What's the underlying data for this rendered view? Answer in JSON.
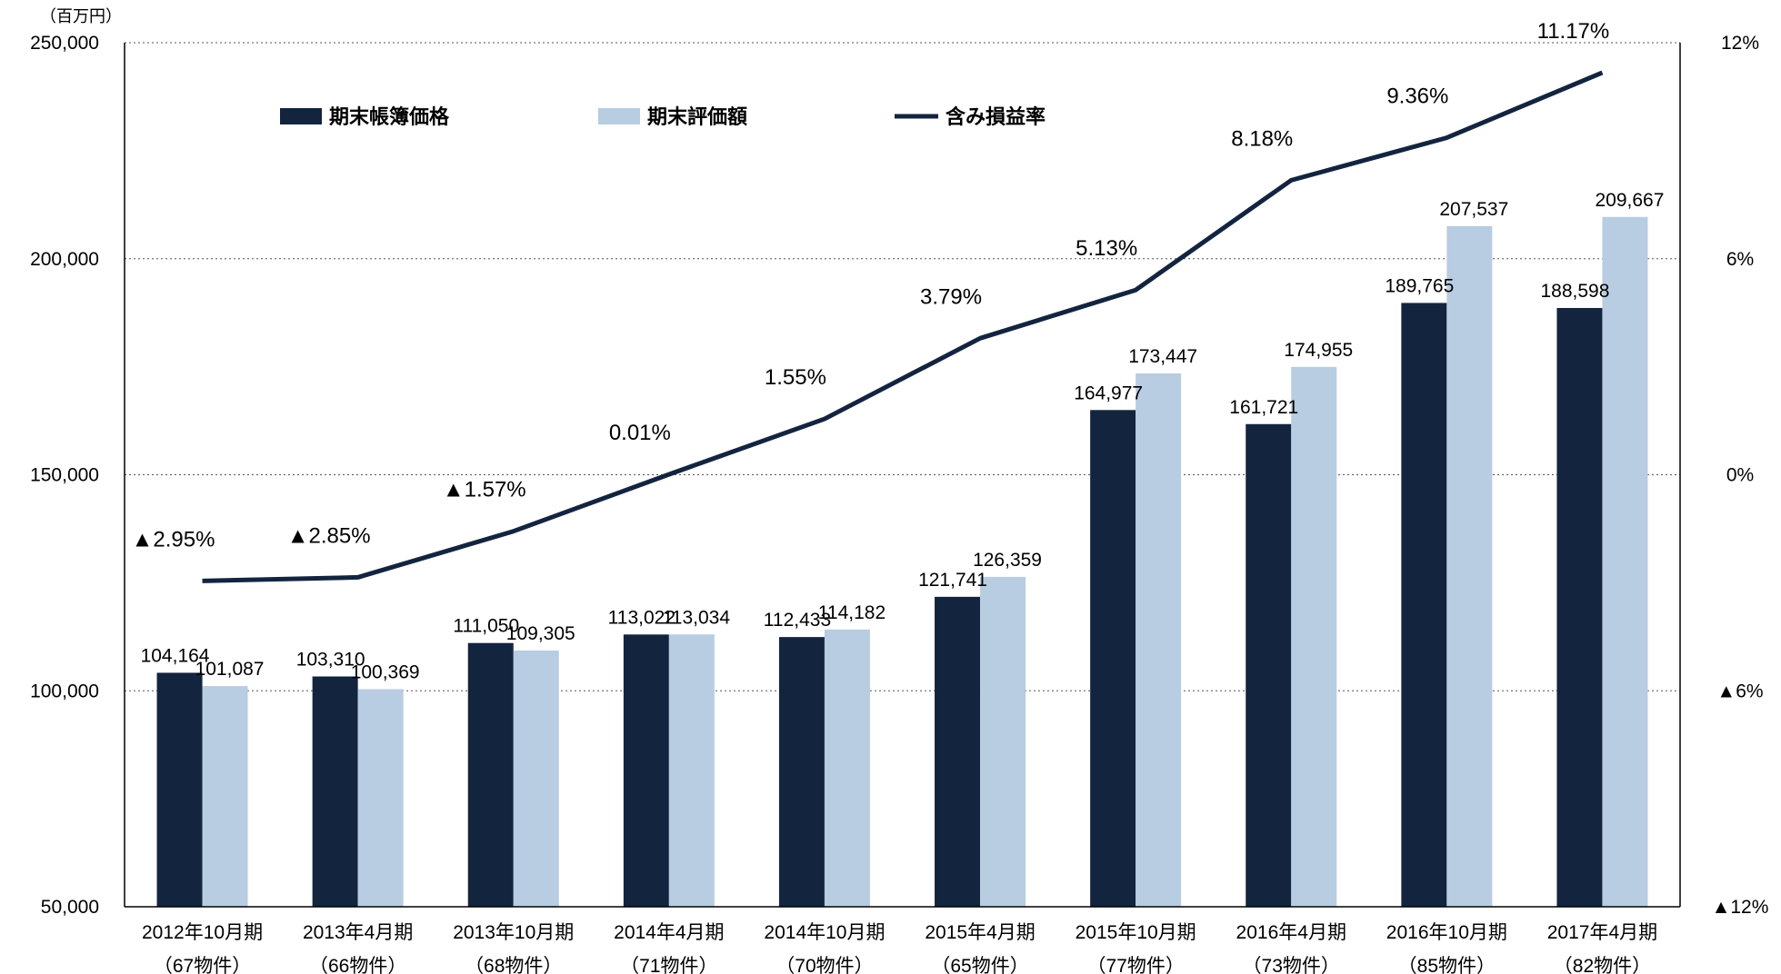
{
  "chart_data": {
    "type": "bar",
    "unit_label": "（百万円）",
    "categories": [
      [
        "2012年10月期",
        "（67物件）"
      ],
      [
        "2013年4月期",
        "（66物件）"
      ],
      [
        "2013年10月期",
        "（68物件）"
      ],
      [
        "2014年4月期",
        "（71物件）"
      ],
      [
        "2014年10月期",
        "（70物件）"
      ],
      [
        "2015年4月期",
        "（65物件）"
      ],
      [
        "2015年10月期",
        "（77物件）"
      ],
      [
        "2016年4月期",
        "（73物件）"
      ],
      [
        "2016年10月期",
        "（85物件）"
      ],
      [
        "2017年4月期",
        "（82物件）"
      ]
    ],
    "series": [
      {
        "name": "期末帳簿価格",
        "kind": "bar",
        "color": "#13243f",
        "values": [
          104164,
          103310,
          111050,
          113022,
          112433,
          121741,
          164977,
          161721,
          189765,
          188598
        ],
        "labels": [
          "104,164",
          "103,310",
          "111,050",
          "113,022",
          "112,433",
          "121,741",
          "164,977",
          "161,721",
          "189,765",
          "188,598"
        ]
      },
      {
        "name": "期末評価額",
        "kind": "bar",
        "color": "#b8cce2",
        "values": [
          101087,
          100369,
          109305,
          113034,
          114182,
          126359,
          173447,
          174955,
          207537,
          209667
        ],
        "labels": [
          "101,087",
          "100,369",
          "109,305",
          "113,034",
          "114,182",
          "126,359",
          "173,447",
          "174,955",
          "207,537",
          "209,667"
        ]
      },
      {
        "name": "含み損益率",
        "kind": "line",
        "axis": "right",
        "color": "#13243f",
        "values": [
          -2.95,
          -2.85,
          -1.57,
          0.01,
          1.55,
          3.79,
          5.13,
          8.18,
          9.36,
          11.17
        ],
        "labels": [
          "▲2.95%",
          "▲2.85%",
          "▲1.57%",
          "0.01%",
          "1.55%",
          "3.79%",
          "5.13%",
          "8.18%",
          "9.36%",
          "11.17%"
        ]
      }
    ],
    "y_left": {
      "min": 50000,
      "max": 250000,
      "ticks": [
        50000,
        100000,
        150000,
        200000,
        250000
      ],
      "tick_labels": [
        "50,000",
        "100,000",
        "150,000",
        "200,000",
        "250,000"
      ]
    },
    "y_right": {
      "min": -12,
      "max": 12,
      "ticks": [
        -12,
        -6,
        0,
        6,
        12
      ],
      "tick_labels": [
        "▲12%",
        "▲6%",
        "0%",
        "6%",
        "12%"
      ]
    },
    "gridlines": "dotted",
    "legend_position": "top-left"
  }
}
